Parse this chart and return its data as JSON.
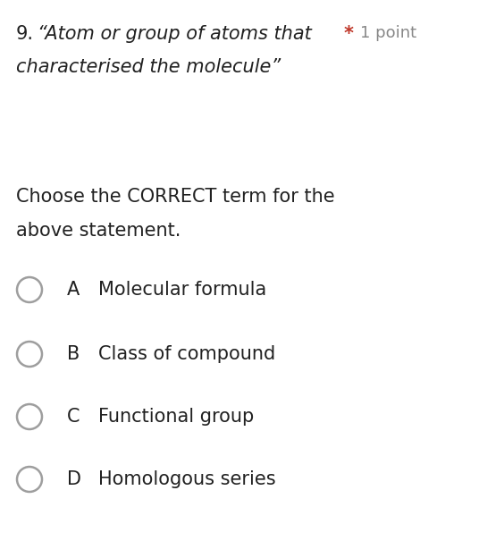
{
  "question_number": "9.",
  "asterisk": "*",
  "points": "1 point",
  "italic_line1": "“Atom or group of atoms that",
  "italic_line2": "characterised the molecule”",
  "instruction_line1": "Choose the CORRECT term for the",
  "instruction_line2": "above statement.",
  "options": [
    {
      "letter": "A",
      "text": "Molecular formula"
    },
    {
      "letter": "B",
      "text": "Class of compound"
    },
    {
      "letter": "C",
      "text": "Functional group"
    },
    {
      "letter": "D",
      "text": "Homologous series"
    }
  ],
  "bg_color": "#ffffff",
  "text_color": "#212121",
  "asterisk_color": "#c0392b",
  "points_color": "#888888",
  "circle_edge_color": "#9e9e9e",
  "circle_fill_color": "#ffffff",
  "font_size_question": 15,
  "font_size_instruction": 15,
  "font_size_options": 15,
  "font_size_points": 13,
  "fig_width": 5.64,
  "fig_height": 6.24,
  "dpi": 100
}
